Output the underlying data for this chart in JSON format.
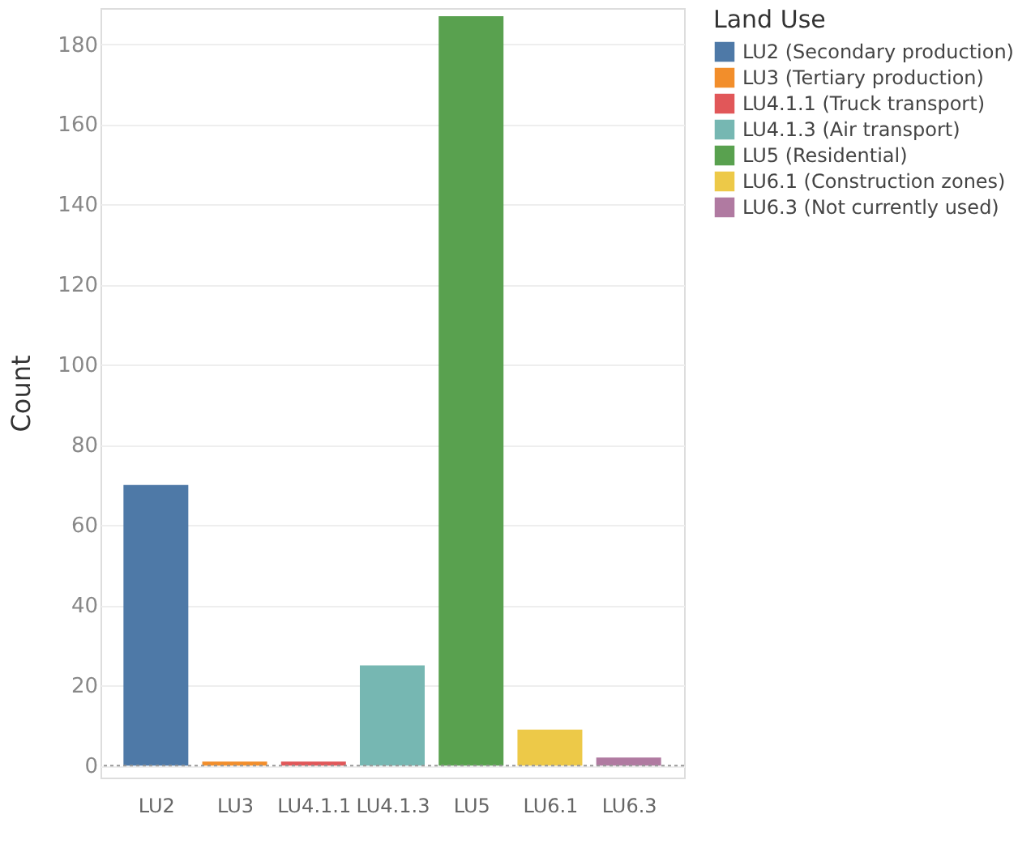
{
  "chart_data": {
    "type": "bar",
    "ylabel": "Count",
    "legend_title": "Land Use",
    "categories": [
      "LU2",
      "LU3",
      "LU4.1.1",
      "LU4.1.3",
      "LU5",
      "LU6.1",
      "LU6.3"
    ],
    "series": [
      {
        "name": "LU2 (Secondary production)",
        "color": "#4e79a7",
        "values": [
          70,
          null,
          null,
          null,
          null,
          null,
          null
        ]
      },
      {
        "name": "LU3 (Tertiary production)",
        "color": "#f28e2b",
        "values": [
          null,
          1,
          null,
          null,
          null,
          null,
          null
        ]
      },
      {
        "name": "LU4.1.1 (Truck transport)",
        "color": "#e15759",
        "values": [
          null,
          null,
          1,
          null,
          null,
          null,
          null
        ]
      },
      {
        "name": "LU4.1.3 (Air transport)",
        "color": "#76b7b2",
        "values": [
          null,
          null,
          null,
          25,
          null,
          null,
          null
        ]
      },
      {
        "name": "LU5 (Residential)",
        "color": "#59a14f",
        "values": [
          null,
          null,
          null,
          null,
          187,
          null,
          null
        ]
      },
      {
        "name": "LU6.1 (Construction zones)",
        "color": "#edc948",
        "values": [
          null,
          null,
          null,
          null,
          null,
          9,
          null
        ]
      },
      {
        "name": "LU6.3 (Not currently used)",
        "color": "#b07aa1",
        "values": [
          null,
          null,
          null,
          null,
          null,
          null,
          2
        ]
      }
    ],
    "ylim": [
      -3,
      189
    ],
    "yticks": [
      0,
      20,
      40,
      60,
      80,
      100,
      120,
      140,
      160,
      180
    ],
    "ref_lines": [
      {
        "axis": "y",
        "value": 0,
        "color": "#999999",
        "line_style": "dotted"
      }
    ],
    "grid": "y",
    "legend": "top right"
  }
}
